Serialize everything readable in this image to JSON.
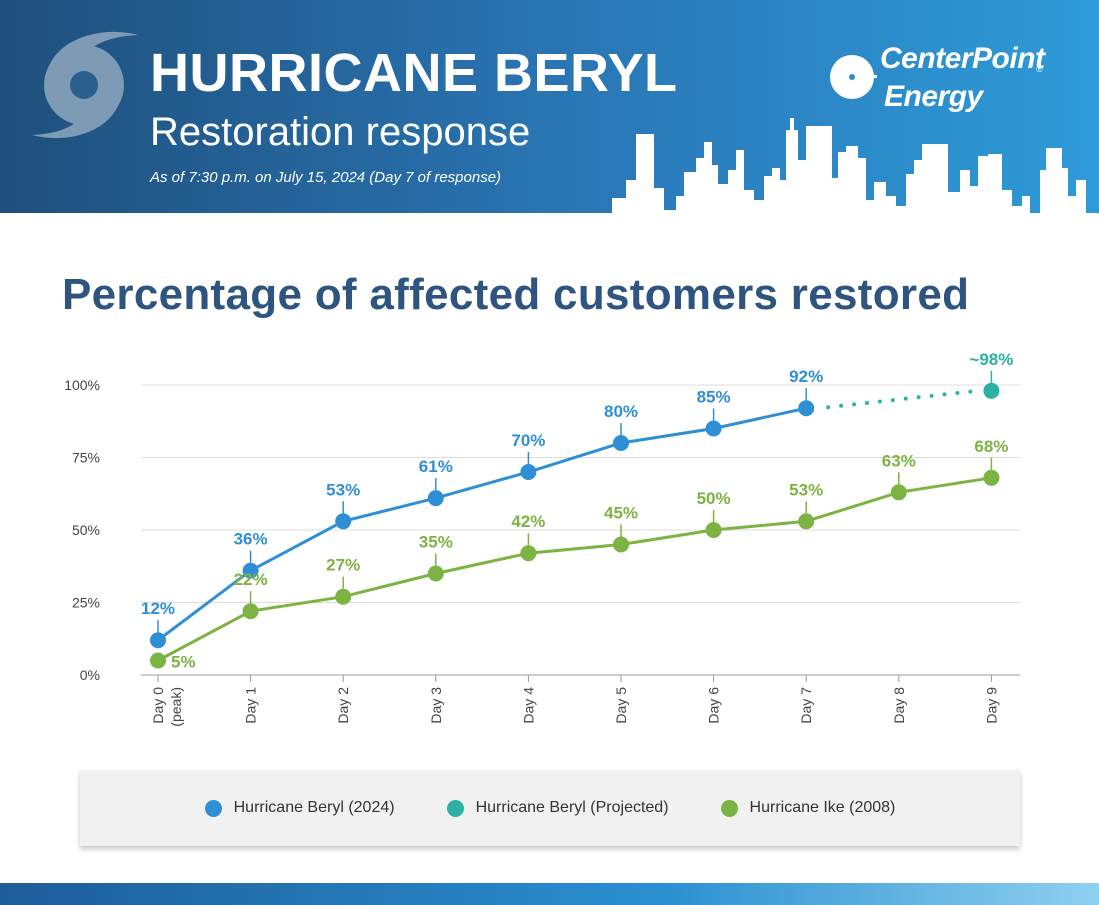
{
  "header": {
    "title": "HURRICANE BERYL",
    "subtitle": "Restoration response",
    "as_of": "As of 7:30 p.m. on July 15, 2024 (Day 7 of response)",
    "brand_line1": "CenterPoint",
    "brand_line2": "Energy",
    "brand_mark": "®",
    "icon": "hurricane-icon"
  },
  "colors": {
    "heading": "#2d5580",
    "beryl": "#2f8fd5",
    "projected": "#2bb2a2",
    "ike": "#7cb342",
    "banner_dark": "#1f4f7c",
    "banner_light": "#2e9bd8"
  },
  "chart_data": {
    "type": "line",
    "title": "Percentage of affected customers restored",
    "categories": [
      "Day 0\n(peak)",
      "Day 1",
      "Day 2",
      "Day 3",
      "Day 4",
      "Day 5",
      "Day 6",
      "Day 7",
      "Day 8",
      "Day 9"
    ],
    "ylim": [
      0,
      100
    ],
    "yticks": [
      0,
      25,
      50,
      75,
      100
    ],
    "ytick_labels": [
      "0%",
      "25%",
      "50%",
      "75%",
      "100%"
    ],
    "grid": true,
    "legend_position": "bottom",
    "series": [
      {
        "name": "Hurricane Beryl (2024)",
        "color": "#2f8fd5",
        "values": [
          12,
          36,
          53,
          61,
          70,
          80,
          85,
          92,
          null,
          null
        ],
        "labels": [
          "12%",
          "36%",
          "53%",
          "61%",
          "70%",
          "80%",
          "85%",
          "92%",
          null,
          null
        ]
      },
      {
        "name": "Hurricane Beryl (Projected)",
        "color": "#2bb2a2",
        "values": [
          null,
          null,
          null,
          null,
          null,
          null,
          null,
          92,
          null,
          98
        ],
        "labels": [
          null,
          null,
          null,
          null,
          null,
          null,
          null,
          null,
          null,
          "~98%"
        ]
      },
      {
        "name": "Hurricane Ike (2008)",
        "color": "#7cb342",
        "values": [
          5,
          22,
          27,
          35,
          42,
          45,
          50,
          53,
          63,
          68
        ],
        "labels": [
          "5%",
          "22%",
          "27%",
          "35%",
          "42%",
          "45%",
          "50%",
          "53%",
          "63%",
          "68%"
        ]
      }
    ]
  }
}
